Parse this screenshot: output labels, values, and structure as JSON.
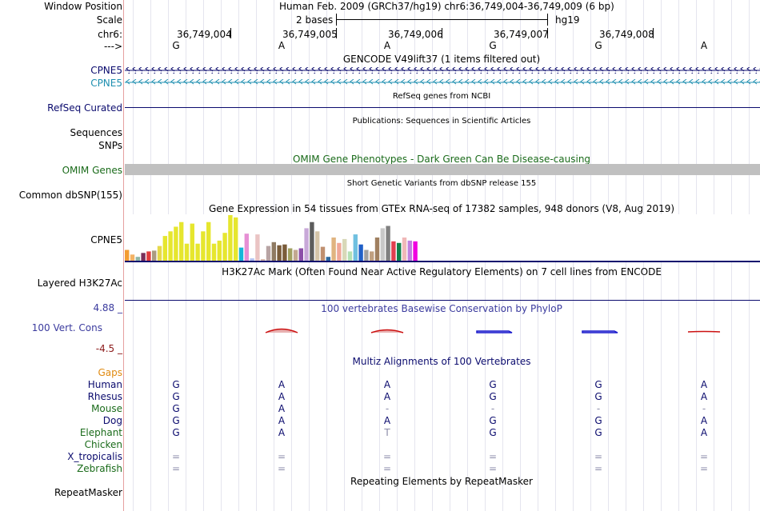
{
  "header": {
    "window_position_label": "Window Position",
    "window_position_value": "Human Feb. 2009 (GRCh37/hg19)   chr6:36,749,004-36,749,009 (6 bp)",
    "scale_label": "Scale",
    "scale_value": "2 bases",
    "scale_assembly": "hg19",
    "chrom_label": "chr6:",
    "strand_label": "--->",
    "positions": [
      "36,749,004",
      "36,749,005",
      "36,749,006",
      "36,749,007",
      "36,749,008"
    ],
    "bases": [
      "G",
      "A",
      "A",
      "G",
      "G",
      "A"
    ]
  },
  "tracks": {
    "gencode": {
      "title": "GENCODE V49lift37 (1 items filtered out)",
      "items": [
        {
          "label": "CPNE5",
          "color": "#0b0b6e"
        },
        {
          "label": "CPNE5",
          "color": "#1e8fb0"
        }
      ]
    },
    "refseq": {
      "label": "RefSeq Curated",
      "title": "RefSeq genes from NCBI"
    },
    "publications": {
      "title": "Publications: Sequences in Scientific Articles",
      "labels": [
        "Sequences",
        "SNPs"
      ]
    },
    "omim": {
      "label": "OMIM Genes",
      "title": "OMIM Gene Phenotypes - Dark Green Can Be Disease-causing"
    },
    "dbsnp": {
      "label": "Common dbSNP(155)",
      "title": "Short Genetic Variants from dbSNP release 155"
    },
    "gtex": {
      "title": "Gene Expression in 54 tissues from GTEx RNA-seq of 17382 samples, 948 donors (V8, Aug 2019)",
      "label": "CPNE5"
    },
    "h3k27ac": {
      "label": "Layered H3K27Ac",
      "title": "H3K27Ac Mark (Often Found Near Active Regulatory Elements) on 7 cell lines from ENCODE"
    },
    "phylop": {
      "title": "100 vertebrates Basewise Conservation by PhyloP",
      "label": "100 Vert. Cons",
      "max": "4.88 _",
      "min": "-4.5 _"
    },
    "multiz": {
      "title": "Multiz Alignments of 100 Vertebrates",
      "gaps_label": "Gaps",
      "species": [
        {
          "name": "Human",
          "color": "#0b0b6e",
          "bases": [
            "G",
            "A",
            "A",
            "G",
            "G",
            "A"
          ]
        },
        {
          "name": "Rhesus",
          "color": "#0b0b6e",
          "bases": [
            "G",
            "A",
            "A",
            "G",
            "G",
            "A"
          ]
        },
        {
          "name": "Mouse",
          "color": "#1a6b1a",
          "bases": [
            "G",
            "A",
            "-",
            "-",
            "-",
            "-"
          ]
        },
        {
          "name": "Dog",
          "color": "#0b0b6e",
          "bases": [
            "G",
            "A",
            "A",
            "G",
            "G",
            "A"
          ]
        },
        {
          "name": "Elephant",
          "color": "#1a6b1a",
          "bases": [
            "G",
            "A",
            "T",
            "G",
            "G",
            "A"
          ]
        },
        {
          "name": "Chicken",
          "color": "#1a6b1a",
          "bases": [
            "",
            "",
            "",
            "",
            "",
            ""
          ]
        },
        {
          "name": "X_tropicalis",
          "color": "#0b0b6e",
          "bases": [
            "=",
            "=",
            "=",
            "=",
            "=",
            "="
          ]
        },
        {
          "name": "Zebrafish",
          "color": "#1a6b1a",
          "bases": [
            "=",
            "=",
            "=",
            "=",
            "=",
            "="
          ]
        }
      ]
    },
    "repeatmasker": {
      "label": "RepeatMasker",
      "title": "Repeating Elements by RepeatMasker"
    }
  },
  "gtex_values": [
    14,
    8,
    5,
    10,
    12,
    13,
    19,
    32,
    38,
    44,
    50,
    22,
    48,
    22,
    38,
    50,
    22,
    26,
    36,
    59,
    56,
    17,
    35,
    3,
    34,
    2,
    19,
    24,
    20,
    21,
    16,
    14,
    16,
    42,
    50,
    38,
    18,
    5,
    30,
    23,
    28,
    12,
    34,
    21,
    14,
    12,
    30,
    42,
    45,
    25,
    23,
    30,
    26,
    25
  ],
  "gtex_colors": [
    "#f39c32",
    "#f3b266",
    "#8fb5a6",
    "#7a2f59",
    "#e13c3c",
    "#aa9b80",
    "#e6d94b",
    "#e6e62e",
    "#e6e62e",
    "#e6e62e",
    "#e6e62e",
    "#e6e62e",
    "#e6e62e",
    "#e6e62e",
    "#e6e62e",
    "#e6e62e",
    "#e6e62e",
    "#e6e62e",
    "#e6e62e",
    "#e6e62e",
    "#e6e62e",
    "#16b6d9",
    "#e68fd4",
    "#b0c0f0",
    "#eac4c4",
    "#d4b5a8",
    "#b8a4a4",
    "#8f7a62",
    "#7a5c3a",
    "#7a5c3a",
    "#a0a060",
    "#c2a890",
    "#8c4fa8",
    "#c8a8d8",
    "#5c5c5c",
    "#d4c4a8",
    "#c09070",
    "#2e6aa0",
    "#e0b480",
    "#f0a898",
    "#d8d8b8",
    "#b4e0b4",
    "#70c0e0",
    "#2060c8",
    "#a0a0a0",
    "#c0a080",
    "#a08060",
    "#c8c8c8",
    "#808080",
    "#e04050",
    "#10804a",
    "#f0b8b8",
    "#c080e0",
    "#f000e0"
  ]
}
